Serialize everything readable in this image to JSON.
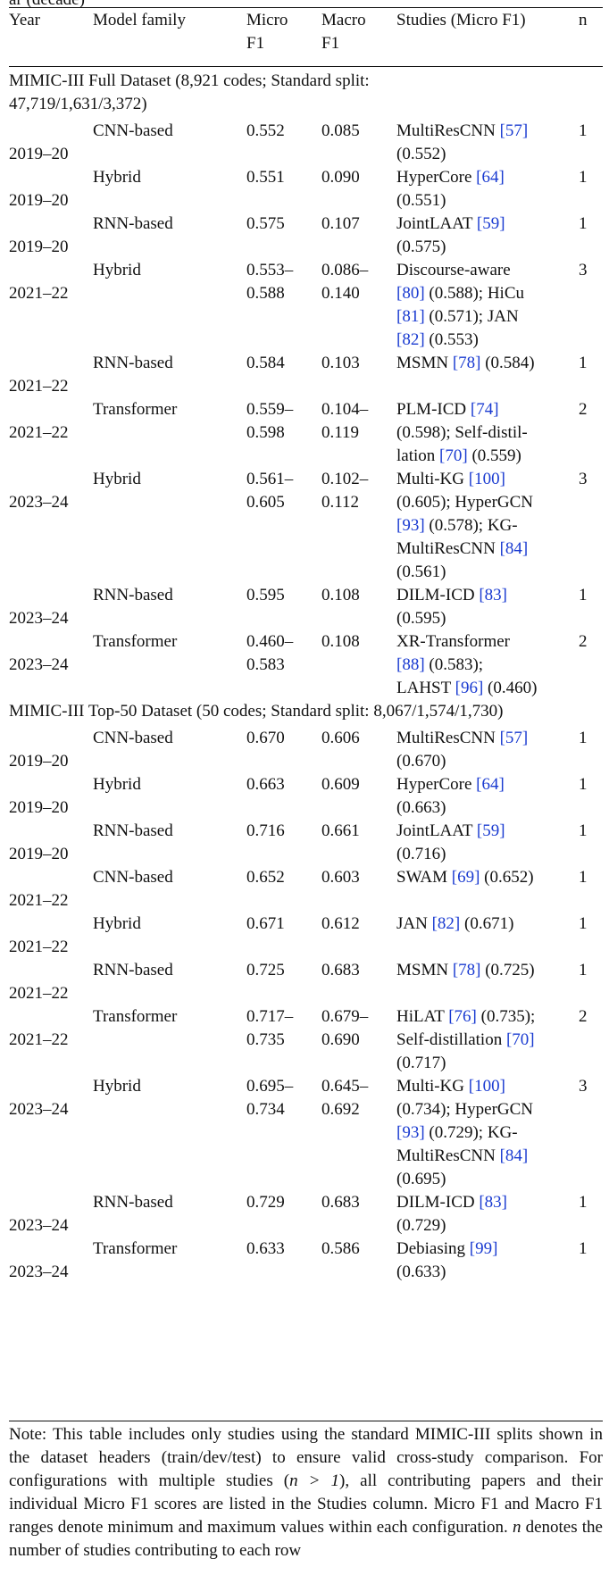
{
  "caption_tail": "ar (decade)",
  "columns": {
    "year": "Year",
    "family": "Model family",
    "micro": [
      "Micro",
      "F1"
    ],
    "macro": [
      "Macro",
      "F1"
    ],
    "studies": "Studies (Micro F1)",
    "n": "n"
  },
  "sections": [
    {
      "title_lines": [
        "MIMIC-III Full Dataset (8,921 codes; Standard split:",
        "47,719/1,631/3,372)"
      ],
      "rows": [
        {
          "year": "2019–20",
          "family": "CNN-based",
          "micro": [
            "0.552"
          ],
          "macro": [
            "0.085"
          ],
          "studies": [
            [
              "MultiResCNN ",
              "[57]",
              ""
            ],
            [
              "(0.552)"
            ]
          ],
          "n": "1"
        },
        {
          "year": "2019–20",
          "family": "Hybrid",
          "micro": [
            "0.551"
          ],
          "macro": [
            "0.090"
          ],
          "studies": [
            [
              "HyperCore ",
              "[64]",
              ""
            ],
            [
              "(0.551)"
            ]
          ],
          "n": "1"
        },
        {
          "year": "2019–20",
          "family": "RNN-based",
          "micro": [
            "0.575"
          ],
          "macro": [
            "0.107"
          ],
          "studies": [
            [
              "JointLAAT ",
              "[59]",
              ""
            ],
            [
              "(0.575)"
            ]
          ],
          "n": "1"
        },
        {
          "year": "2021–22",
          "family": "Hybrid",
          "micro": [
            "0.553–",
            "0.588"
          ],
          "macro": [
            "0.086–",
            "0.140"
          ],
          "studies": [
            [
              "Discourse-aware"
            ],
            [
              "",
              "[80]",
              " (0.588); HiCu"
            ],
            [
              "",
              "[81]",
              " (0.571); JAN"
            ],
            [
              "",
              "[82]",
              " (0.553)"
            ]
          ],
          "n": "3"
        },
        {
          "year": "2021–22",
          "family": "RNN-based",
          "micro": [
            "0.584"
          ],
          "macro": [
            "0.103"
          ],
          "studies": [
            [
              "MSMN ",
              "[78]",
              " (0.584)"
            ]
          ],
          "n": "1"
        },
        {
          "year": "2021–22",
          "family": "Transformer",
          "micro": [
            "0.559–",
            "0.598"
          ],
          "macro": [
            "0.104–",
            "0.119"
          ],
          "studies": [
            [
              "PLM-ICD ",
              "[74]",
              ""
            ],
            [
              "(0.598); Self-distil-"
            ],
            [
              "lation ",
              "[70]",
              " (0.559)"
            ]
          ],
          "n": "2"
        },
        {
          "year": "2023–24",
          "family": "Hybrid",
          "micro": [
            "0.561–",
            "0.605"
          ],
          "macro": [
            "0.102–",
            "0.112"
          ],
          "studies": [
            [
              "Multi-KG ",
              "[100]",
              ""
            ],
            [
              "(0.605); HyperGCN"
            ],
            [
              "",
              "[93]",
              " (0.578); KG-"
            ],
            [
              "MultiResCNN ",
              "[84]",
              ""
            ],
            [
              "(0.561)"
            ]
          ],
          "n": "3"
        },
        {
          "year": "2023–24",
          "family": "RNN-based",
          "micro": [
            "0.595"
          ],
          "macro": [
            "0.108"
          ],
          "studies": [
            [
              "DILM-ICD ",
              "[83]",
              ""
            ],
            [
              "(0.595)"
            ]
          ],
          "n": "1"
        },
        {
          "year": "2023–24",
          "family": "Transformer",
          "micro": [
            "0.460–",
            "0.583"
          ],
          "macro": [
            "0.108"
          ],
          "studies": [
            [
              "XR-Transformer"
            ],
            [
              "",
              "[88]",
              " (0.583);"
            ],
            [
              "LAHST ",
              "[96]",
              " (0.460)"
            ]
          ],
          "n": "2"
        }
      ]
    },
    {
      "title_lines": [
        "MIMIC-III Top-50 Dataset (50 codes; Standard split: 8,067/1,574/1,730)"
      ],
      "rows": [
        {
          "year": "2019–20",
          "family": "CNN-based",
          "micro": [
            "0.670"
          ],
          "macro": [
            "0.606"
          ],
          "studies": [
            [
              "MultiResCNN ",
              "[57]",
              ""
            ],
            [
              "(0.670)"
            ]
          ],
          "n": "1"
        },
        {
          "year": "2019–20",
          "family": "Hybrid",
          "micro": [
            "0.663"
          ],
          "macro": [
            "0.609"
          ],
          "studies": [
            [
              "HyperCore ",
              "[64]",
              ""
            ],
            [
              "(0.663)"
            ]
          ],
          "n": "1"
        },
        {
          "year": "2019–20",
          "family": "RNN-based",
          "micro": [
            "0.716"
          ],
          "macro": [
            "0.661"
          ],
          "studies": [
            [
              "JointLAAT ",
              "[59]",
              ""
            ],
            [
              "(0.716)"
            ]
          ],
          "n": "1"
        },
        {
          "year": "2021–22",
          "family": "CNN-based",
          "micro": [
            "0.652"
          ],
          "macro": [
            "0.603"
          ],
          "studies": [
            [
              "SWAM ",
              "[69]",
              " (0.652)"
            ]
          ],
          "n": "1"
        },
        {
          "year": "2021–22",
          "family": "Hybrid",
          "micro": [
            "0.671"
          ],
          "macro": [
            "0.612"
          ],
          "studies": [
            [
              "JAN ",
              "[82]",
              " (0.671)"
            ]
          ],
          "n": "1"
        },
        {
          "year": "2021–22",
          "family": "RNN-based",
          "micro": [
            "0.725"
          ],
          "macro": [
            "0.683"
          ],
          "studies": [
            [
              "MSMN ",
              "[78]",
              " (0.725)"
            ]
          ],
          "n": "1"
        },
        {
          "year": "2021–22",
          "family": "Transformer",
          "micro": [
            "0.717–",
            "0.735"
          ],
          "macro": [
            "0.679–",
            "0.690"
          ],
          "studies": [
            [
              "HiLAT ",
              "[76]",
              " (0.735);"
            ],
            [
              "Self-distillation ",
              "[70]",
              ""
            ],
            [
              "(0.717)"
            ]
          ],
          "n": "2"
        },
        {
          "year": "2023–24",
          "family": "Hybrid",
          "micro": [
            "0.695–",
            "0.734"
          ],
          "macro": [
            "0.645–",
            "0.692"
          ],
          "studies": [
            [
              "Multi-KG ",
              "[100]",
              ""
            ],
            [
              "(0.734); HyperGCN"
            ],
            [
              "",
              "[93]",
              " (0.729); KG-"
            ],
            [
              "MultiResCNN ",
              "[84]",
              ""
            ],
            [
              "(0.695)"
            ]
          ],
          "n": "3"
        },
        {
          "year": "2023–24",
          "family": "RNN-based",
          "micro": [
            "0.729"
          ],
          "macro": [
            "0.683"
          ],
          "studies": [
            [
              "DILM-ICD ",
              "[83]",
              ""
            ],
            [
              "(0.729)"
            ]
          ],
          "n": "1"
        },
        {
          "year": "2023–24",
          "family": "Transformer",
          "micro": [
            "0.633"
          ],
          "macro": [
            "0.586"
          ],
          "studies": [
            [
              "Debiasing ",
              "[99]",
              ""
            ],
            [
              "(0.633)"
            ]
          ],
          "n": "1"
        }
      ]
    }
  ],
  "note": {
    "part1": "Note: This table includes only studies using the standard MIMIC-III splits shown in the dataset headers (train/dev/test) to ensure valid cross-study comparison. For configurations with multiple studies (",
    "math": "n > 1",
    "part2": "), all contributing papers and their individual Micro F1 scores are listed in the Studies column. Micro F1 and Macro F1 ranges denote minimum and maximum values within each configuration. ",
    "n_italic": "n",
    "part3": " denotes the number of studies contributing to each row"
  }
}
